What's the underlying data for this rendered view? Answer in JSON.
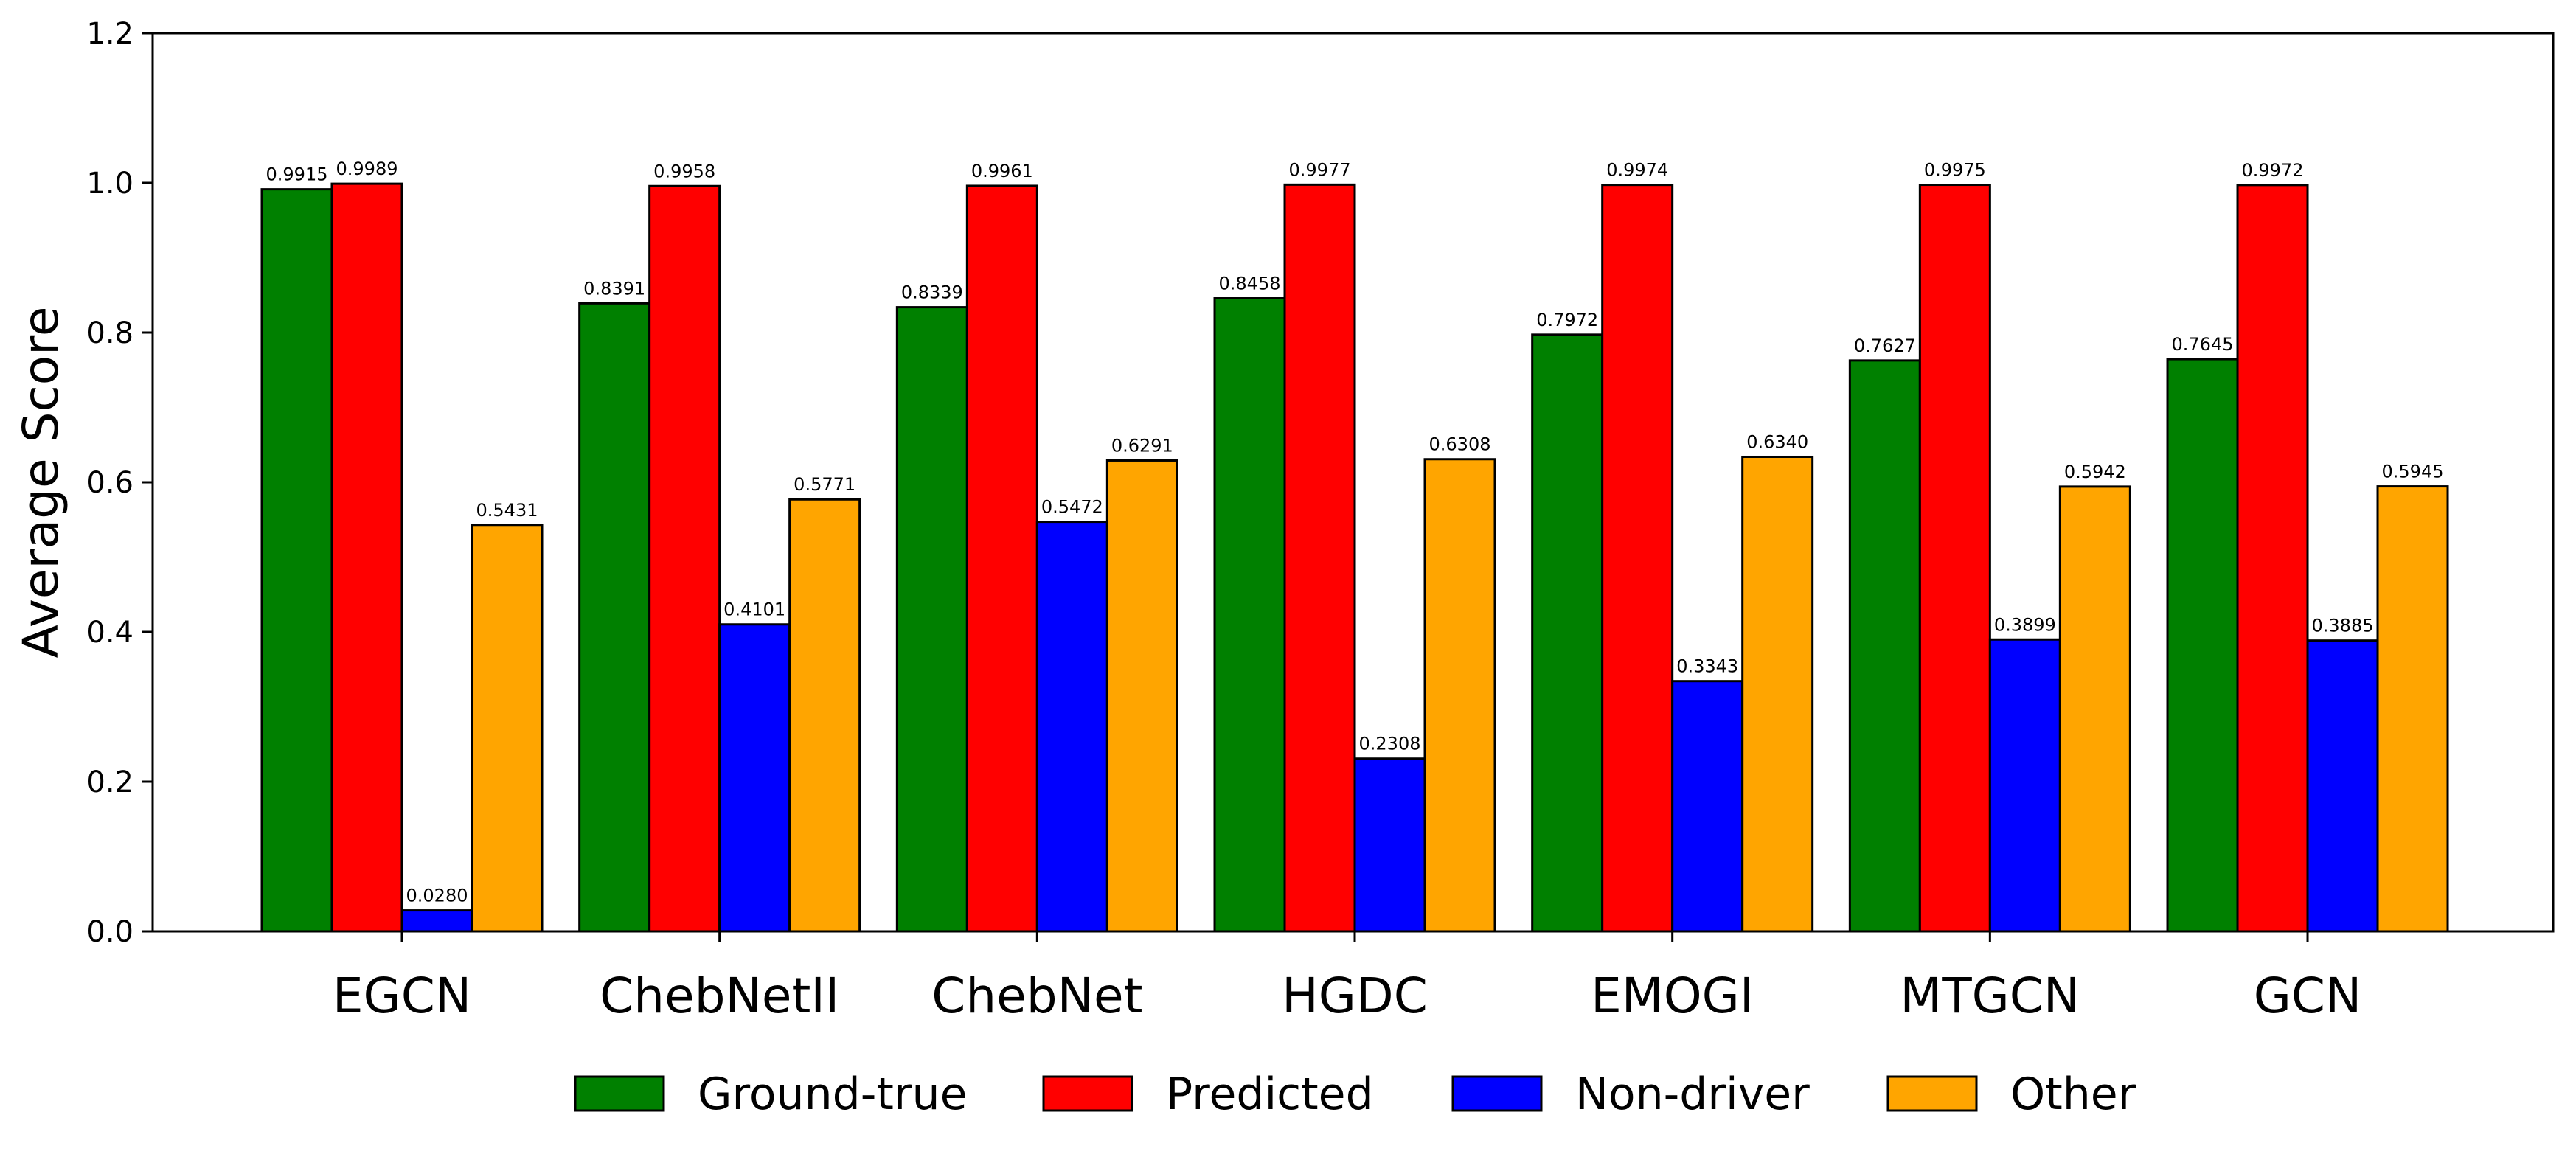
{
  "chart_data": {
    "type": "bar",
    "categories": [
      "EGCN",
      "ChebNetII",
      "ChebNet",
      "HGDC",
      "EMOGI",
      "MTGCN",
      "GCN"
    ],
    "series": [
      {
        "name": "Ground-true",
        "color": "#008000",
        "values": [
          0.9915,
          0.8391,
          0.8339,
          0.8458,
          0.7972,
          0.7627,
          0.7645
        ]
      },
      {
        "name": "Predicted",
        "color": "#ff0000",
        "values": [
          0.9989,
          0.9958,
          0.9961,
          0.9977,
          0.9974,
          0.9975,
          0.9972
        ]
      },
      {
        "name": "Non-driver",
        "color": "#0000ff",
        "values": [
          0.028,
          0.4101,
          0.5472,
          0.2308,
          0.3343,
          0.3899,
          0.3885
        ]
      },
      {
        "name": "Other",
        "color": "#ffa500",
        "values": [
          0.5431,
          0.5771,
          0.6291,
          0.6308,
          0.634,
          0.5942,
          0.5945
        ]
      }
    ],
    "ylabel": "Average Score",
    "xlabel": "",
    "ylim": [
      0,
      1.2
    ],
    "yticks": [
      0.0,
      0.2,
      0.4,
      0.6,
      0.8,
      1.0,
      1.2
    ],
    "ytick_labels": [
      "0.0",
      "0.2",
      "0.4",
      "0.6",
      "0.8",
      "1.0",
      "1.2"
    ],
    "data_label_format": "4-decimal",
    "grid": false,
    "legend_placement": "bottom-center"
  }
}
